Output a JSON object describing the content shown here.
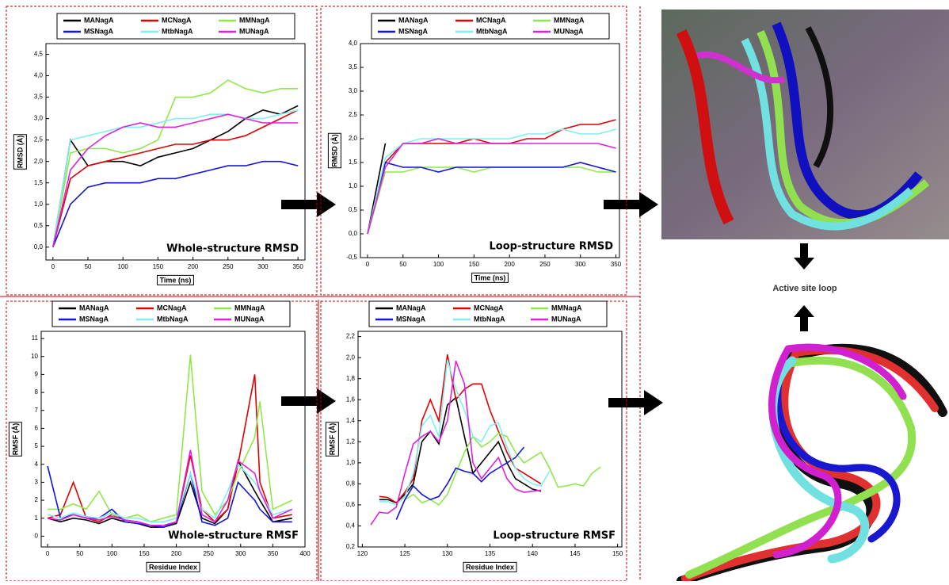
{
  "chart_data": [
    {
      "type": "line",
      "annotation": "Whole-structure RMSD",
      "xlabel": "Time (ns)",
      "ylabel": "RMSD (Å)",
      "legend": "top",
      "x": [
        0,
        25,
        50,
        75,
        100,
        125,
        150,
        175,
        200,
        225,
        250,
        275,
        300,
        325,
        350
      ],
      "series": [
        {
          "name": "MANagA",
          "color": "#000000",
          "values": [
            0,
            2.5,
            1.9,
            2.0,
            2.0,
            1.9,
            2.1,
            2.2,
            2.3,
            2.5,
            2.7,
            3.0,
            3.2,
            3.1,
            3.3
          ]
        },
        {
          "name": "MCNagA",
          "color": "#e00000",
          "values": [
            0,
            1.6,
            1.9,
            2.0,
            2.1,
            2.2,
            2.3,
            2.4,
            2.4,
            2.5,
            2.5,
            2.6,
            2.8,
            3.0,
            3.2
          ]
        },
        {
          "name": "MMNagA",
          "color": "#8fe84a",
          "values": [
            0,
            2.2,
            2.3,
            2.3,
            2.2,
            2.3,
            2.5,
            3.5,
            3.5,
            3.6,
            3.9,
            3.7,
            3.6,
            3.7,
            3.7
          ]
        },
        {
          "name": "MSNagA",
          "color": "#1414dc",
          "values": [
            0,
            1.0,
            1.4,
            1.5,
            1.5,
            1.5,
            1.6,
            1.6,
            1.7,
            1.8,
            1.9,
            1.9,
            2.0,
            2.0,
            1.9
          ]
        },
        {
          "name": "MtbNagA",
          "color": "#7ff0f0",
          "values": [
            0,
            2.5,
            2.6,
            2.7,
            2.8,
            2.8,
            2.9,
            3.0,
            3.0,
            3.1,
            3.1,
            3.0,
            3.0,
            3.1,
            3.2
          ]
        },
        {
          "name": "MUNagA",
          "color": "#e020e0",
          "values": [
            0,
            1.8,
            2.3,
            2.6,
            2.8,
            2.9,
            2.8,
            2.8,
            2.9,
            3.0,
            3.1,
            3.0,
            2.9,
            2.9,
            2.9
          ]
        }
      ],
      "xlim": [
        -10,
        360
      ],
      "ylim": [
        -0.3,
        4.75
      ],
      "xticks": [
        0,
        50,
        100,
        150,
        200,
        250,
        300,
        350
      ],
      "yticks": [
        {
          "value": 0,
          "label": "0,0"
        },
        {
          "value": 0.5,
          "label": "0,5"
        },
        {
          "value": 1,
          "label": "1,0"
        },
        {
          "value": 1.5,
          "label": "1,5"
        },
        {
          "value": 2,
          "label": "2,0"
        },
        {
          "value": 2.5,
          "label": "2,5"
        },
        {
          "value": 3,
          "label": "3,0"
        },
        {
          "value": 3.5,
          "label": "3,5"
        },
        {
          "value": 4,
          "label": "4,0"
        },
        {
          "value": 4.5,
          "label": "4,5"
        }
      ]
    },
    {
      "type": "line",
      "annotation": "Loop-structure RMSD",
      "xlabel": "Time (ns)",
      "ylabel": "RMSD (Å)",
      "legend": "top",
      "x": [
        0,
        25,
        50,
        75,
        100,
        125,
        150,
        175,
        200,
        225,
        250,
        275,
        300,
        325,
        350
      ],
      "series": [
        {
          "name": "MANagA",
          "color": "#000000",
          "values": [
            0,
            1.9,
            null,
            null,
            null,
            null,
            null,
            null,
            null,
            null,
            null,
            null,
            null,
            null,
            null
          ]
        },
        {
          "name": "MCNagA",
          "color": "#e00000",
          "values": [
            0,
            1.5,
            1.9,
            1.9,
            1.9,
            1.9,
            2.0,
            1.9,
            1.9,
            2.0,
            2.0,
            2.2,
            2.3,
            2.3,
            2.4
          ]
        },
        {
          "name": "MMNagA",
          "color": "#8fe84a",
          "values": [
            0,
            1.3,
            1.3,
            1.4,
            1.4,
            1.4,
            1.3,
            1.4,
            1.4,
            1.4,
            1.4,
            1.4,
            1.4,
            1.3,
            1.3
          ]
        },
        {
          "name": "MSNagA",
          "color": "#1414dc",
          "values": [
            0,
            1.5,
            1.4,
            1.4,
            1.3,
            1.4,
            1.4,
            1.4,
            1.4,
            1.4,
            1.4,
            1.4,
            1.5,
            1.4,
            1.3
          ]
        },
        {
          "name": "MtbNagA",
          "color": "#7ff0f0",
          "values": [
            0,
            1.6,
            1.9,
            2.0,
            2.0,
            2.0,
            2.0,
            2.0,
            2.0,
            2.1,
            2.1,
            2.2,
            2.1,
            2.1,
            2.2
          ]
        },
        {
          "name": "MUNagA",
          "color": "#e020e0",
          "values": [
            0,
            1.4,
            1.9,
            1.9,
            2.0,
            1.9,
            1.9,
            1.9,
            1.9,
            1.9,
            1.9,
            1.9,
            1.9,
            1.9,
            1.8
          ]
        }
      ],
      "xlim": [
        -10,
        355
      ],
      "ylim": [
        -0.5,
        4.0
      ],
      "xticks": [
        0,
        50,
        100,
        150,
        200,
        250,
        300,
        350
      ],
      "yticks": [
        {
          "value": -0.5,
          "label": "-0,5"
        },
        {
          "value": 0,
          "label": "0,0"
        },
        {
          "value": 0.5,
          "label": "0,5"
        },
        {
          "value": 1,
          "label": "1,0"
        },
        {
          "value": 1.5,
          "label": "1,5"
        },
        {
          "value": 2,
          "label": "2,0"
        },
        {
          "value": 2.5,
          "label": "2,5"
        },
        {
          "value": 3,
          "label": "3,0"
        },
        {
          "value": 3.5,
          "label": "3,5"
        },
        {
          "value": 4,
          "label": "4,0"
        }
      ]
    },
    {
      "type": "line",
      "annotation": "Whole-structure RMSF",
      "xlabel": "Residue Index",
      "ylabel": "RMSF (Å)",
      "legend": "top",
      "x": [
        0,
        20,
        40,
        60,
        80,
        100,
        120,
        140,
        160,
        180,
        200,
        222,
        240,
        260,
        280,
        296,
        322,
        330,
        350,
        380
      ],
      "series": [
        {
          "name": "MANagA",
          "color": "#000000",
          "values": [
            1.0,
            0.8,
            1.0,
            0.9,
            0.7,
            1.0,
            0.8,
            0.7,
            0.5,
            0.5,
            0.7,
            3.0,
            1.0,
            0.7,
            1.5,
            4.2,
            2.5,
            2.0,
            0.8,
            1.0
          ]
        },
        {
          "name": "MCNagA",
          "color": "#e00000",
          "values": [
            1.0,
            1.2,
            3.0,
            1.0,
            0.8,
            1.2,
            0.9,
            0.8,
            0.6,
            0.5,
            0.8,
            4.5,
            1.5,
            0.8,
            1.5,
            4.0,
            9.0,
            3.0,
            1.0,
            1.2
          ]
        },
        {
          "name": "MMNagA",
          "color": "#8fe84a",
          "values": [
            1.5,
            1.5,
            1.8,
            1.5,
            2.5,
            1.2,
            1.0,
            1.2,
            0.8,
            1.0,
            1.2,
            10.1,
            2.5,
            1.2,
            2.0,
            3.5,
            5.5,
            7.5,
            1.5,
            2.0
          ]
        },
        {
          "name": "MSNagA",
          "color": "#1414dc",
          "values": [
            3.9,
            1.0,
            1.2,
            1.0,
            1.0,
            1.5,
            0.8,
            0.7,
            0.6,
            0.5,
            0.8,
            3.5,
            0.8,
            0.6,
            1.0,
            3.0,
            2.0,
            1.5,
            0.8,
            0.8
          ]
        },
        {
          "name": "MtbNagA",
          "color": "#7ff0f0",
          "values": [
            1.2,
            1.0,
            1.3,
            1.1,
            1.0,
            1.3,
            1.0,
            1.0,
            0.8,
            0.8,
            1.0,
            3.5,
            1.5,
            1.0,
            2.5,
            4.0,
            3.0,
            2.5,
            1.2,
            1.5
          ]
        },
        {
          "name": "MUNagA",
          "color": "#e020e0",
          "values": [
            1.0,
            0.9,
            1.2,
            1.0,
            0.9,
            1.1,
            0.9,
            0.8,
            0.6,
            0.6,
            0.8,
            4.8,
            1.2,
            0.8,
            2.0,
            4.2,
            3.5,
            2.5,
            1.0,
            1.5
          ]
        }
      ],
      "xlim": [
        -10,
        400
      ],
      "ylim": [
        -0.6,
        11.4
      ],
      "xticks": [
        0,
        50,
        100,
        150,
        200,
        250,
        300,
        350,
        400
      ],
      "yticks": [
        0,
        1,
        2,
        3,
        4,
        5,
        6,
        7,
        8,
        9,
        10,
        11
      ]
    },
    {
      "type": "line",
      "annotation": "Loop-structure RMSF",
      "xlabel": "Residue Index",
      "ylabel": "RMSF (Å)",
      "legend": "top",
      "x": [
        121,
        122,
        123,
        124,
        125,
        126,
        127,
        128,
        129,
        130,
        131,
        132,
        133,
        134,
        135,
        136,
        137,
        138,
        139,
        140,
        141,
        142,
        143,
        144,
        145,
        146,
        147,
        148
      ],
      "series": [
        {
          "name": "MANagA",
          "color": "#000000",
          "values": [
            null,
            0.65,
            0.65,
            0.62,
            0.7,
            0.8,
            1.2,
            1.3,
            1.18,
            1.55,
            1.62,
            1.25,
            0.9,
            1.0,
            1.1,
            1.2,
            1.0,
            0.85,
            0.8,
            0.75,
            0.73,
            null,
            null,
            null,
            null,
            null,
            null,
            null
          ]
        },
        {
          "name": "MCNagA",
          "color": "#e00000",
          "values": [
            null,
            0.68,
            0.67,
            0.62,
            0.72,
            0.85,
            1.4,
            1.6,
            1.4,
            2.03,
            1.6,
            1.7,
            1.75,
            1.75,
            1.5,
            1.3,
            1.1,
            0.95,
            0.9,
            0.85,
            0.8,
            null,
            null,
            null,
            null,
            null,
            null,
            null
          ]
        },
        {
          "name": "MMNagA",
          "color": "#8fe84a",
          "values": [
            null,
            null,
            null,
            null,
            0.65,
            0.7,
            0.62,
            0.65,
            0.6,
            0.7,
            0.9,
            1.1,
            1.25,
            1.15,
            1.2,
            1.28,
            1.25,
            1.1,
            1.0,
            1.05,
            1.1,
            0.95,
            0.77,
            0.78,
            0.8,
            0.78,
            0.9,
            0.96
          ]
        },
        {
          "name": "MSNagA",
          "color": "#1414dc",
          "values": [
            null,
            null,
            null,
            0.46,
            0.65,
            0.78,
            0.7,
            0.65,
            0.68,
            0.8,
            0.95,
            0.92,
            0.9,
            0.82,
            0.9,
            0.95,
            1.0,
            1.05,
            1.15,
            null,
            null,
            null,
            null,
            null,
            null,
            null,
            null,
            null
          ]
        },
        {
          "name": "MtbNagA",
          "color": "#7ff0f0",
          "values": [
            null,
            0.63,
            0.63,
            0.6,
            0.68,
            0.9,
            1.35,
            1.45,
            1.25,
            1.98,
            1.7,
            1.5,
            1.25,
            1.2,
            1.35,
            1.38,
            1.15,
            0.95,
            0.85,
            0.8,
            0.78,
            0.92,
            null,
            null,
            null,
            null,
            null,
            null
          ]
        },
        {
          "name": "MUNagA",
          "color": "#e020e0",
          "values": [
            0.41,
            0.53,
            0.52,
            0.58,
            0.9,
            1.18,
            1.25,
            1.3,
            1.2,
            1.4,
            1.97,
            1.75,
            1.0,
            0.85,
            0.95,
            1.05,
            0.85,
            0.75,
            0.72,
            0.73,
            0.74,
            null,
            null,
            null,
            null,
            null,
            null,
            null
          ]
        }
      ],
      "xlim": [
        119.5,
        150.5
      ],
      "ylim": [
        0.2,
        2.25
      ],
      "xticks": [
        120,
        125,
        130,
        135,
        140,
        145,
        150
      ],
      "yticks": [
        {
          "value": 0.2,
          "label": "0,2"
        },
        {
          "value": 0.4,
          "label": "0,4"
        },
        {
          "value": 0.6,
          "label": "0,6"
        },
        {
          "value": 0.8,
          "label": "0,8"
        },
        {
          "value": 1,
          "label": "1,0"
        },
        {
          "value": 1.2,
          "label": "1,2"
        },
        {
          "value": 1.4,
          "label": "1,4"
        },
        {
          "value": 1.6,
          "label": "1,6"
        },
        {
          "value": 1.8,
          "label": "1,8"
        },
        {
          "value": 2,
          "label": "2,0"
        },
        {
          "value": 2.2,
          "label": "2,2"
        }
      ]
    }
  ],
  "annotation": "Active site loop"
}
